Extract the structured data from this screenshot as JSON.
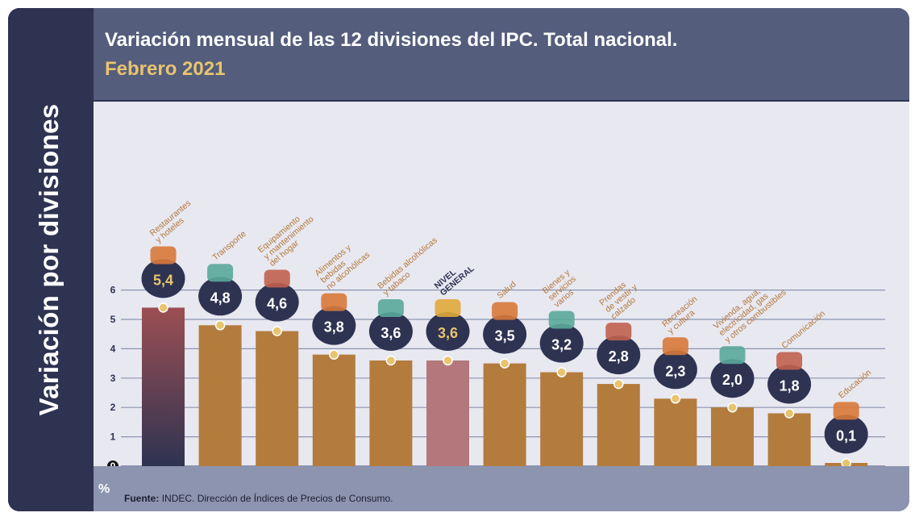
{
  "sidebar": {
    "title": "Variación por divisiones"
  },
  "header": {
    "title": "Variación mensual de las 12 divisiones del IPC. Total nacional.",
    "subtitle": "Febrero 2021"
  },
  "footer": {
    "unit": "%",
    "source_label": "Fuente:",
    "source_text": "INDEC. Dirección de Índices de Precios de Consumo."
  },
  "colors": {
    "bar": "#b37c3d",
    "highlight_bar": "#b4777b",
    "first_bar_top": "#9c4f53",
    "first_bar_bottom": "#2e3352",
    "bubble": "#2e3352",
    "label": "#b3783a",
    "value_text": "#ffffff",
    "highlight_value": "#e8c46e",
    "dot": "#e8c46e"
  },
  "chart_data": {
    "type": "bar",
    "title": "Variación mensual de las 12 divisiones del IPC. Total nacional.",
    "subtitle": "Febrero 2021",
    "xlabel": "",
    "ylabel": "Variación por divisiones",
    "unit": "%",
    "ylim": [
      0,
      6
    ],
    "yticks": [
      "0",
      "1",
      "2",
      "3",
      "4",
      "5",
      "6"
    ],
    "grid": true,
    "categories": [
      [
        "Restaurantes",
        "y hoteles"
      ],
      [
        "Transporte"
      ],
      [
        "Equipamiento",
        "y mantenimiento",
        "del hogar"
      ],
      [
        "Alimentos y",
        "bebidas",
        "no alcohólicas"
      ],
      [
        "Bebidas alcohólicas",
        "y tabaco"
      ],
      [
        "NIVEL",
        "GENERAL"
      ],
      [
        "Salud"
      ],
      [
        "Bienes y",
        "servicios",
        "varios"
      ],
      [
        "Prendas",
        "de vestir y",
        "calzado"
      ],
      [
        "Recreación",
        "y cultura"
      ],
      [
        "Vivienda, agua,",
        "electricidad, gas",
        "y otros combustibles"
      ],
      [
        "Comunicación"
      ],
      [
        "Educación"
      ]
    ],
    "value_labels": [
      "5,4",
      "4,8",
      "4,6",
      "3,8",
      "3,6",
      "3,6",
      "3,5",
      "3,2",
      "2,8",
      "2,3",
      "2,0",
      "1,8",
      "0,1"
    ],
    "values": [
      5.4,
      4.8,
      4.6,
      3.8,
      3.6,
      3.6,
      3.5,
      3.2,
      2.8,
      2.3,
      2.0,
      1.8,
      0.1
    ],
    "highlight_index": 5,
    "icons": [
      "cutlery-icon",
      "bus-icon",
      "washing-machine-icon",
      "roast-chicken-icon",
      "bottle-icon",
      "shopping-basket-icon",
      "medical-cross-icon",
      "scissors-icon",
      "shirt-icon",
      "ball-icon",
      "lightbulb-icon",
      "phone-icon",
      "book-icon"
    ]
  }
}
